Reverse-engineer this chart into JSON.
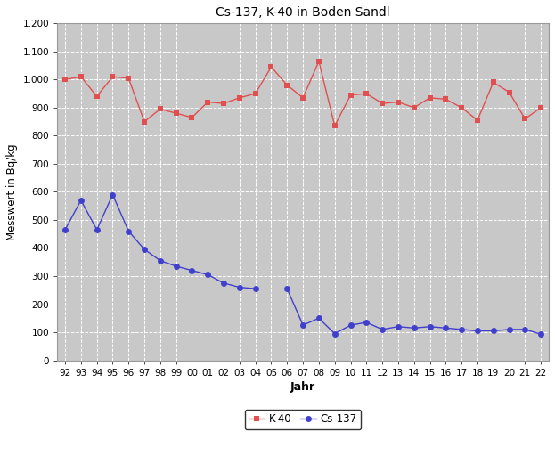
{
  "title": "Cs-137, K-40 in Boden Sandl",
  "xlabel": "Jahr",
  "ylabel": "Messwert in Bq/kg",
  "years": [
    "92",
    "93",
    "94",
    "95",
    "96",
    "97",
    "98",
    "99",
    "00",
    "01",
    "02",
    "03",
    "04",
    "05",
    "06",
    "07",
    "08",
    "09",
    "10",
    "11",
    "12",
    "13",
    "14",
    "15",
    "16",
    "17",
    "18",
    "19",
    "20",
    "21",
    "22"
  ],
  "k40_values": [
    1000,
    1010,
    940,
    1010,
    1005,
    850,
    895,
    880,
    865,
    920,
    915,
    935,
    950,
    1045,
    980,
    935,
    1065,
    835,
    945,
    950,
    915,
    920,
    900,
    935,
    930,
    900,
    855,
    990,
    955,
    860,
    900
  ],
  "cs137_values": [
    465,
    570,
    465,
    590,
    460,
    395,
    355,
    335,
    320,
    305,
    275,
    260,
    255,
    null,
    255,
    125,
    150,
    95,
    125,
    135,
    110,
    120,
    115,
    120,
    115,
    110,
    105,
    105,
    110,
    110,
    93
  ],
  "k40_color": "#e05050",
  "cs137_color": "#4040cc",
  "plot_bg_color": "#c8c8c8",
  "fig_bg_color": "#ffffff",
  "grid_color": "#ffffff",
  "ylim": [
    0,
    1200
  ],
  "ytick_vals": [
    0,
    100,
    200,
    300,
    400,
    500,
    600,
    700,
    800,
    900,
    1000,
    1100,
    1200
  ],
  "ytick_labels": [
    "0",
    "100",
    "200",
    "300",
    "400",
    "500",
    "600",
    "700",
    "800",
    "900",
    "1.000",
    "1.100",
    "1.200"
  ]
}
